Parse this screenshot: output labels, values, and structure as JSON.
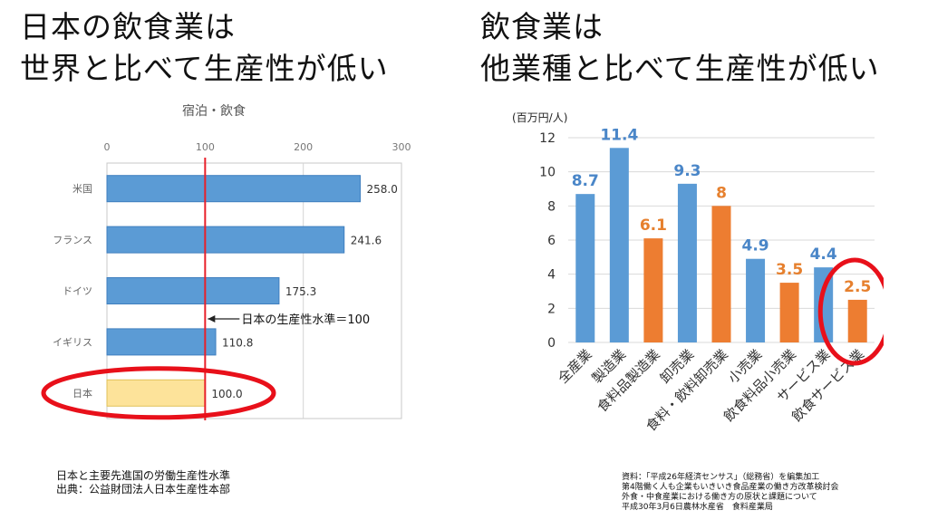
{
  "left_headline": {
    "line1": "日本の飲食業は",
    "line2": "世界と比べて生産性が低い"
  },
  "right_headline": {
    "line1": "飲食業は",
    "line2": "他業種と比べて生産性が低い"
  },
  "left_note": {
    "line1": "日本と主要先進国の労働生産性水準",
    "line2": "出典：公益財団法人日本生産性本部"
  },
  "right_note": {
    "line1": "資料：「平成26年経済センサス」（総務省）を編集加工",
    "line2": "第4階働く人も企業もいきいき食品産業の働き方改革検討会",
    "line3": "外食・中食産業における働き方の原状と課題について",
    "line4": "平成30年3月6日農林水産省　食料産業局"
  },
  "colors": {
    "blue_bar": "#5b9bd5",
    "orange_bar": "#ed7d31",
    "japan_bar": "#fde39a",
    "reference_line": "#e8202a",
    "highlight_ellipse": "#e8101a",
    "blue_label": "#4a86c8",
    "orange_label": "#e6802e"
  },
  "chart_data": [
    {
      "type": "bar",
      "orientation": "horizontal",
      "title": "宿泊・飲食",
      "categories": [
        "米国",
        "フランス",
        "ドイツ",
        "イギリス",
        "日本"
      ],
      "values": [
        258.0,
        241.6,
        175.3,
        110.8,
        100.0
      ],
      "value_labels": [
        "258.0",
        "241.6",
        "175.3",
        "110.8",
        "100.0"
      ],
      "xlim": [
        0,
        300
      ],
      "xticks": [
        "0",
        "100",
        "200",
        "300"
      ],
      "reference_line": {
        "value": 100,
        "label": "日本の生産性水準＝100"
      },
      "highlighted_category": "日本",
      "grid": true
    },
    {
      "type": "bar",
      "ylabel": "(百万円/人)",
      "categories": [
        "全産業",
        "製造業",
        "食料品製造業",
        "卸売業",
        "食料・飲料卸売業",
        "小売業",
        "飲食料品小売業",
        "サービス業",
        "飲食サービス業"
      ],
      "values": [
        8.7,
        11.4,
        6.1,
        9.3,
        8,
        4.9,
        3.5,
        4.4,
        2.5
      ],
      "value_labels": [
        "8.7",
        "11.4",
        "6.1",
        "9.3",
        "8",
        "4.9",
        "3.5",
        "4.4",
        "2.5"
      ],
      "bar_colors": [
        "blue",
        "blue",
        "orange",
        "blue",
        "orange",
        "blue",
        "orange",
        "blue",
        "orange"
      ],
      "ylim": [
        0,
        12
      ],
      "yticks": [
        "0",
        "2",
        "4",
        "6",
        "8",
        "10",
        "12"
      ],
      "highlighted_category": "飲食サービス業",
      "grid": true
    }
  ]
}
